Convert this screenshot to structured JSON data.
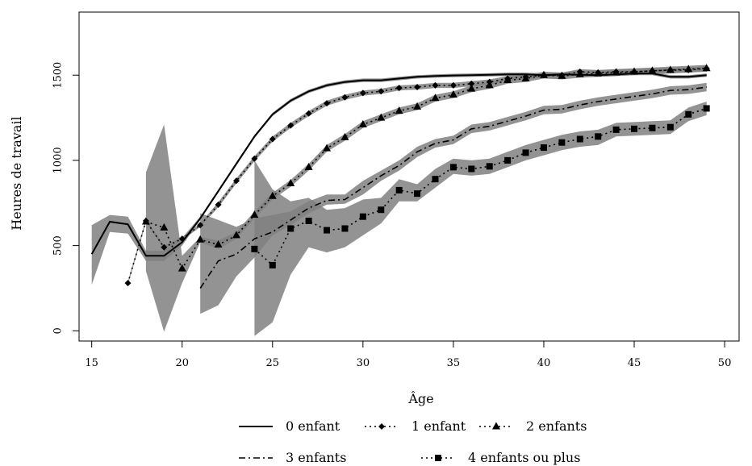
{
  "chart_data": {
    "type": "line",
    "title": "",
    "xlabel": "Âge",
    "ylabel": "Heures de travail",
    "xlim": [
      14.3,
      50.8
    ],
    "ylim": [
      -60,
      1870
    ],
    "xticks": [
      "15",
      "20",
      "25",
      "30",
      "35",
      "40",
      "45",
      "50"
    ],
    "yticks": [
      "0",
      "500",
      "1000",
      "1500"
    ],
    "grid": false,
    "legend_position": "bottom",
    "band_color": "#808080",
    "line_color": "#000000",
    "series": [
      {
        "name": "0 enfant",
        "style": "solid",
        "marker": "none",
        "x": [
          15,
          16,
          17,
          18,
          19,
          20,
          21,
          22,
          23,
          24,
          25,
          26,
          27,
          28,
          29,
          30,
          31,
          32,
          33,
          34,
          35,
          36,
          37,
          38,
          39,
          40,
          41,
          42,
          43,
          44,
          45,
          46,
          47,
          48,
          49
        ],
        "y": [
          450,
          640,
          625,
          440,
          440,
          520,
          660,
          820,
          980,
          1140,
          1270,
          1350,
          1405,
          1440,
          1460,
          1470,
          1470,
          1480,
          1490,
          1495,
          1498,
          1500,
          1502,
          1505,
          1505,
          1500,
          1505,
          1502,
          1500,
          1505,
          1510,
          1510,
          1490,
          1490,
          1500
        ],
        "band": [
          [
            270,
            620
          ],
          [
            580,
            680
          ],
          [
            570,
            670
          ],
          [
            410,
            470
          ],
          [
            410,
            470
          ],
          [
            500,
            545
          ],
          [
            650,
            670
          ],
          [
            810,
            830
          ],
          [
            970,
            990
          ],
          [
            1130,
            1150
          ],
          [
            1260,
            1280
          ],
          [
            1340,
            1360
          ],
          [
            1395,
            1415
          ],
          [
            1430,
            1450
          ],
          [
            1450,
            1470
          ],
          [
            1460,
            1480
          ],
          [
            1460,
            1480
          ],
          [
            1470,
            1490
          ],
          [
            1480,
            1500
          ],
          [
            1485,
            1505
          ],
          [
            1488,
            1508
          ],
          [
            1490,
            1510
          ],
          [
            1492,
            1512
          ],
          [
            1495,
            1515
          ],
          [
            1495,
            1515
          ],
          [
            1490,
            1510
          ],
          [
            1495,
            1515
          ],
          [
            1492,
            1512
          ],
          [
            1490,
            1510
          ],
          [
            1495,
            1515
          ],
          [
            1500,
            1520
          ],
          [
            1500,
            1520
          ],
          [
            1480,
            1500
          ],
          [
            1480,
            1500
          ],
          [
            1490,
            1510
          ]
        ]
      },
      {
        "name": "1 enfant",
        "style": "dotted",
        "marker": "diamond",
        "x": [
          17,
          18,
          19,
          20,
          21,
          22,
          23,
          24,
          25,
          26,
          27,
          28,
          29,
          30,
          31,
          32,
          33,
          34,
          35,
          36,
          37,
          38,
          39,
          40,
          41,
          42,
          43,
          44,
          45,
          46,
          47,
          48,
          49
        ],
        "y": [
          280,
          645,
          490,
          540,
          620,
          740,
          880,
          1010,
          1125,
          1205,
          1275,
          1335,
          1370,
          1395,
          1405,
          1425,
          1430,
          1440,
          1440,
          1450,
          1460,
          1480,
          1490,
          1500,
          1500,
          1520,
          1515,
          1520,
          1520,
          1525,
          1530,
          1530,
          1540
        ],
        "band": [
          [
            270,
            290
          ],
          [
            635,
            655
          ],
          [
            480,
            500
          ],
          [
            530,
            550
          ],
          [
            610,
            630
          ],
          [
            725,
            755
          ],
          [
            865,
            895
          ],
          [
            995,
            1025
          ],
          [
            1110,
            1140
          ],
          [
            1190,
            1220
          ],
          [
            1260,
            1290
          ],
          [
            1320,
            1350
          ],
          [
            1355,
            1385
          ],
          [
            1380,
            1410
          ],
          [
            1390,
            1420
          ],
          [
            1410,
            1440
          ],
          [
            1415,
            1445
          ],
          [
            1425,
            1455
          ],
          [
            1425,
            1455
          ],
          [
            1435,
            1465
          ],
          [
            1445,
            1475
          ],
          [
            1465,
            1495
          ],
          [
            1475,
            1505
          ],
          [
            1485,
            1515
          ],
          [
            1485,
            1515
          ],
          [
            1505,
            1535
          ],
          [
            1500,
            1530
          ],
          [
            1505,
            1535
          ],
          [
            1505,
            1535
          ],
          [
            1510,
            1540
          ],
          [
            1515,
            1545
          ],
          [
            1515,
            1545
          ],
          [
            1525,
            1555
          ]
        ]
      },
      {
        "name": "2 enfants",
        "style": "dotted",
        "marker": "triangle",
        "x": [
          18,
          19,
          20,
          21,
          22,
          23,
          24,
          25,
          26,
          27,
          28,
          29,
          30,
          31,
          32,
          33,
          34,
          35,
          36,
          37,
          38,
          39,
          40,
          41,
          42,
          43,
          44,
          45,
          46,
          47,
          48,
          49
        ],
        "y": [
          640,
          605,
          365,
          535,
          505,
          560,
          680,
          790,
          865,
          960,
          1070,
          1135,
          1210,
          1250,
          1290,
          1315,
          1365,
          1385,
          1420,
          1440,
          1470,
          1480,
          1500,
          1495,
          1505,
          1510,
          1515,
          1520,
          1525,
          1530,
          1535,
          1540
        ],
        "band": [
          [
            350,
            930
          ],
          [
            -5,
            1210
          ],
          [
            280,
            440
          ],
          [
            520,
            550
          ],
          [
            480,
            530
          ],
          [
            540,
            580
          ],
          [
            660,
            700
          ],
          [
            770,
            810
          ],
          [
            845,
            885
          ],
          [
            940,
            980
          ],
          [
            1050,
            1090
          ],
          [
            1115,
            1155
          ],
          [
            1190,
            1230
          ],
          [
            1230,
            1270
          ],
          [
            1270,
            1310
          ],
          [
            1295,
            1335
          ],
          [
            1345,
            1385
          ],
          [
            1365,
            1405
          ],
          [
            1400,
            1440
          ],
          [
            1420,
            1460
          ],
          [
            1450,
            1490
          ],
          [
            1460,
            1500
          ],
          [
            1480,
            1520
          ],
          [
            1475,
            1515
          ],
          [
            1485,
            1525
          ],
          [
            1490,
            1530
          ],
          [
            1495,
            1535
          ],
          [
            1500,
            1540
          ],
          [
            1505,
            1545
          ],
          [
            1510,
            1550
          ],
          [
            1515,
            1555
          ],
          [
            1520,
            1560
          ]
        ]
      },
      {
        "name": "3 enfants",
        "style": "dashdot",
        "marker": "none",
        "x": [
          21,
          22,
          23,
          24,
          25,
          26,
          27,
          28,
          29,
          30,
          31,
          32,
          33,
          34,
          35,
          36,
          37,
          38,
          39,
          40,
          41,
          42,
          43,
          44,
          45,
          46,
          47,
          48,
          49
        ],
        "y": [
          250,
          410,
          450,
          540,
          580,
          650,
          720,
          765,
          770,
          840,
          910,
          970,
          1050,
          1100,
          1120,
          1185,
          1200,
          1230,
          1260,
          1295,
          1300,
          1325,
          1345,
          1360,
          1375,
          1390,
          1410,
          1415,
          1430
        ],
        "band": [
          [
            100,
            690
          ],
          [
            150,
            650
          ],
          [
            320,
            610
          ],
          [
            430,
            660
          ],
          [
            560,
            680
          ],
          [
            620,
            700
          ],
          [
            690,
            760
          ],
          [
            740,
            800
          ],
          [
            745,
            800
          ],
          [
            800,
            880
          ],
          [
            880,
            940
          ],
          [
            940,
            1000
          ],
          [
            1020,
            1080
          ],
          [
            1075,
            1125
          ],
          [
            1095,
            1145
          ],
          [
            1160,
            1210
          ],
          [
            1175,
            1225
          ],
          [
            1205,
            1255
          ],
          [
            1235,
            1285
          ],
          [
            1270,
            1320
          ],
          [
            1275,
            1325
          ],
          [
            1300,
            1350
          ],
          [
            1320,
            1370
          ],
          [
            1335,
            1385
          ],
          [
            1350,
            1400
          ],
          [
            1365,
            1415
          ],
          [
            1385,
            1435
          ],
          [
            1390,
            1440
          ],
          [
            1405,
            1455
          ]
        ]
      },
      {
        "name": "4 enfants ou plus",
        "style": "dotted",
        "marker": "square",
        "x": [
          24,
          25,
          26,
          27,
          28,
          29,
          30,
          31,
          32,
          33,
          34,
          35,
          36,
          37,
          38,
          39,
          40,
          41,
          42,
          43,
          44,
          45,
          46,
          47,
          48,
          49
        ],
        "y": [
          480,
          385,
          600,
          645,
          590,
          600,
          670,
          710,
          825,
          805,
          890,
          960,
          950,
          965,
          1000,
          1045,
          1075,
          1105,
          1125,
          1140,
          1180,
          1185,
          1190,
          1195,
          1270,
          1305
        ],
        "band": [
          [
            -30,
            1000
          ],
          [
            50,
            830
          ],
          [
            330,
            760
          ],
          [
            490,
            780
          ],
          [
            460,
            710
          ],
          [
            490,
            720
          ],
          [
            560,
            770
          ],
          [
            630,
            780
          ],
          [
            760,
            890
          ],
          [
            760,
            860
          ],
          [
            840,
            950
          ],
          [
            920,
            1010
          ],
          [
            910,
            1000
          ],
          [
            920,
            1010
          ],
          [
            960,
            1050
          ],
          [
            1000,
            1090
          ],
          [
            1030,
            1120
          ],
          [
            1060,
            1150
          ],
          [
            1080,
            1170
          ],
          [
            1090,
            1180
          ],
          [
            1140,
            1220
          ],
          [
            1145,
            1225
          ],
          [
            1150,
            1230
          ],
          [
            1155,
            1235
          ],
          [
            1230,
            1310
          ],
          [
            1265,
            1345
          ]
        ]
      }
    ]
  }
}
